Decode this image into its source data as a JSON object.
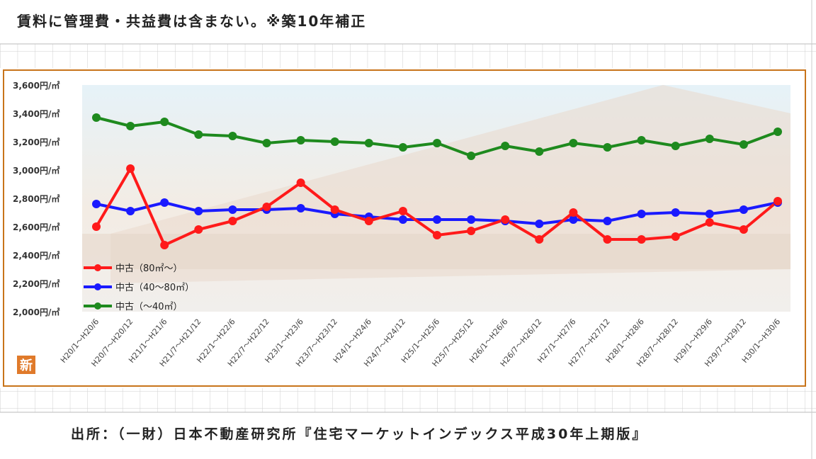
{
  "header": {
    "note": "賃料に管理費・共益費は含まない。※築10年補正"
  },
  "footer": {
    "source": "出所：（一財）日本不動産研究所『住宅マーケットインデックス平成30年上期版』"
  },
  "logo": {
    "glyph": "新",
    "icon": "shin-logo-icon"
  },
  "chart_data": {
    "type": "line",
    "title": "",
    "xlabel": "",
    "ylabel": "",
    "ylim": [
      2000,
      3600
    ],
    "yticks": [
      2000,
      2200,
      2400,
      2600,
      2800,
      3000,
      3200,
      3400,
      3600
    ],
    "ytick_unit": "円/㎡",
    "grid": false,
    "legend_position": "bottom-left",
    "categories": [
      "H20/1～H20/6",
      "H20/7～H20/12",
      "H21/1～H21/6",
      "H21/7～H21/12",
      "H22/1～H22/6",
      "H22/7～H22/12",
      "H23/1～H23/6",
      "H23/7～H23/12",
      "H24/1～H24/6",
      "H24/7～H24/12",
      "H25/1～H25/6",
      "H25/7～H25/12",
      "H26/1～H26/6",
      "H26/7～H26/12",
      "H27/1～H27/6",
      "H27/7～H27/12",
      "H28/1～H28/6",
      "H28/7～H28/12",
      "H29/1～H29/6",
      "H29/7～H29/12",
      "H30/1～H30/6"
    ],
    "series": [
      {
        "name": "中古（80㎡～）",
        "color": "#ff1a1a",
        "values": [
          2600,
          3010,
          2470,
          2580,
          2640,
          2740,
          2910,
          2720,
          2640,
          2710,
          2540,
          2570,
          2650,
          2510,
          2700,
          2510,
          2510,
          2530,
          2630,
          2580,
          2780
        ]
      },
      {
        "name": "中古（40～80㎡）",
        "color": "#1a1aff",
        "values": [
          2760,
          2710,
          2770,
          2710,
          2720,
          2720,
          2730,
          2690,
          2670,
          2650,
          2650,
          2650,
          2640,
          2620,
          2650,
          2640,
          2690,
          2700,
          2690,
          2720,
          2770
        ]
      },
      {
        "name": "中古（～40㎡）",
        "color": "#1e8a1e",
        "values": [
          3370,
          3310,
          3340,
          3250,
          3240,
          3190,
          3210,
          3200,
          3190,
          3160,
          3190,
          3100,
          3170,
          3130,
          3190,
          3160,
          3210,
          3170,
          3220,
          3180,
          3270
        ]
      }
    ]
  }
}
